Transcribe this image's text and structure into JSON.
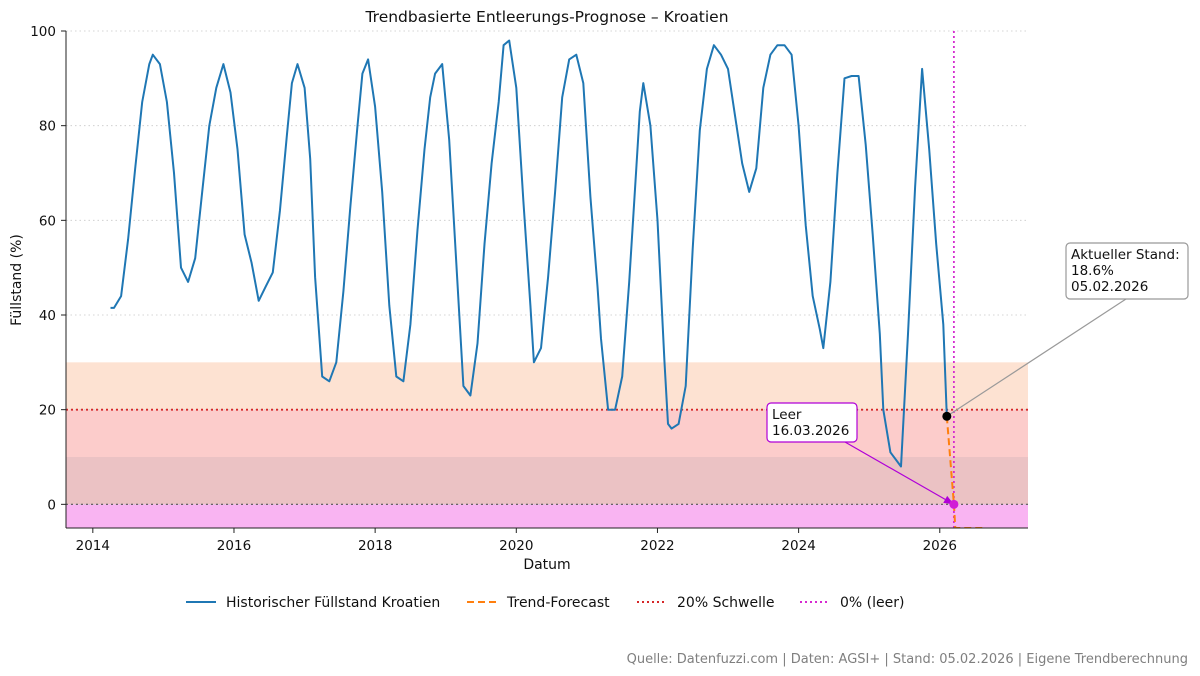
{
  "chart_data": {
    "type": "line",
    "title": "Trendbasierte Entleerungs-Prognose – Kroatien",
    "xlabel": "Datum",
    "ylabel": "Füllstand (%)",
    "xlim": [
      2013.62,
      2027.25
    ],
    "ylim": [
      -5,
      100
    ],
    "x_ticks": [
      2014,
      2016,
      2018,
      2020,
      2022,
      2024,
      2026
    ],
    "y_ticks": [
      0,
      20,
      40,
      60,
      80,
      100
    ],
    "grid": "horizontal dotted",
    "bands": [
      {
        "from": 20,
        "to": 30,
        "color": "#fde2d2"
      },
      {
        "from": 10,
        "to": 20,
        "color": "#fccccb"
      },
      {
        "from": 0,
        "to": 10,
        "color": "#ebc2c4"
      },
      {
        "from": -5,
        "to": 0,
        "color": "#f9b4f2"
      }
    ],
    "series": [
      {
        "name": "Historischer Füllstand Kroatien",
        "color": "#1f77b4",
        "style": "solid",
        "x": [
          2014.25,
          2014.3,
          2014.4,
          2014.5,
          2014.6,
          2014.7,
          2014.8,
          2014.85,
          2014.95,
          2015.05,
          2015.15,
          2015.25,
          2015.35,
          2015.45,
          2015.55,
          2015.65,
          2015.75,
          2015.85,
          2015.95,
          2016.05,
          2016.15,
          2016.25,
          2016.35,
          2016.45,
          2016.55,
          2016.65,
          2016.75,
          2016.82,
          2016.9,
          2017.0,
          2017.08,
          2017.15,
          2017.25,
          2017.35,
          2017.45,
          2017.55,
          2017.65,
          2017.75,
          2017.82,
          2017.9,
          2018.0,
          2018.1,
          2018.2,
          2018.3,
          2018.4,
          2018.5,
          2018.6,
          2018.7,
          2018.78,
          2018.85,
          2018.95,
          2019.05,
          2019.15,
          2019.25,
          2019.35,
          2019.45,
          2019.55,
          2019.65,
          2019.75,
          2019.82,
          2019.9,
          2020.0,
          2020.1,
          2020.2,
          2020.25,
          2020.35,
          2020.45,
          2020.55,
          2020.65,
          2020.75,
          2020.85,
          2020.95,
          2021.05,
          2021.15,
          2021.2,
          2021.3,
          2021.4,
          2021.5,
          2021.6,
          2021.7,
          2021.75,
          2021.8,
          2021.9,
          2022.0,
          2022.1,
          2022.15,
          2022.2,
          2022.3,
          2022.4,
          2022.5,
          2022.6,
          2022.7,
          2022.8,
          2022.9,
          2023.0,
          2023.1,
          2023.2,
          2023.3,
          2023.4,
          2023.5,
          2023.6,
          2023.7,
          2023.8,
          2023.9,
          2024.0,
          2024.1,
          2024.2,
          2024.3,
          2024.35,
          2024.45,
          2024.55,
          2024.65,
          2024.75,
          2024.85,
          2024.95,
          2025.05,
          2025.15,
          2025.2,
          2025.3,
          2025.45,
          2025.55,
          2025.65,
          2025.75,
          2025.85,
          2025.95,
          2026.05,
          2026.1
        ],
        "y": [
          41.5,
          41.5,
          44,
          56,
          71,
          85,
          93,
          95,
          93,
          85,
          70,
          50,
          47,
          52,
          66,
          80,
          88,
          93,
          87,
          75,
          57,
          51,
          43,
          46,
          49,
          62,
          78,
          89,
          93,
          88,
          73,
          48,
          27,
          26,
          30,
          45,
          63,
          80,
          91,
          94,
          84,
          66,
          42,
          27,
          26,
          38,
          58,
          75,
          86,
          91,
          93,
          77,
          51,
          25,
          23,
          34,
          55,
          72,
          85,
          97,
          98,
          88,
          64,
          42,
          30,
          33,
          48,
          66,
          86,
          94,
          95,
          89,
          65,
          46,
          35,
          20,
          20,
          27,
          47,
          71,
          83,
          89,
          80,
          60,
          30,
          17,
          16,
          17,
          25,
          54,
          79,
          92,
          97,
          95,
          92,
          82,
          72,
          66,
          71,
          88,
          95,
          97,
          97,
          95,
          80,
          59,
          44,
          37,
          33,
          47,
          70,
          90,
          90.5,
          90.5,
          76,
          57,
          36,
          20,
          11,
          8,
          36,
          67,
          92,
          75,
          55,
          38,
          18.6
        ]
      },
      {
        "name": "Trend-Forecast",
        "color": "#ff7f0e",
        "style": "dashed",
        "x": [
          2026.1,
          2026.2,
          2026.22,
          2026.32,
          2026.42,
          2026.62
        ],
        "y": [
          18.6,
          0,
          -5,
          -5,
          -5,
          -5
        ]
      }
    ],
    "reference_lines": [
      {
        "name": "20% Schwelle",
        "orientation": "horizontal",
        "value": 20,
        "color": "#d62728",
        "style": "dotted"
      },
      {
        "name": "0% (leer)",
        "orientation": "vertical",
        "value": 2026.2,
        "color": "#d62ad0",
        "style": "dotted"
      }
    ],
    "extra_lines": [
      {
        "orientation": "horizontal",
        "value": 0,
        "color": "#555555",
        "style": "dotted"
      }
    ],
    "markers": [
      {
        "name": "current",
        "x": 2026.1,
        "y": 18.6,
        "color": "#000000"
      },
      {
        "name": "empty",
        "x": 2026.2,
        "y": 0,
        "color": "#d11dd6"
      }
    ],
    "annotations": [
      {
        "lines": [
          "Aktueller Stand:",
          "18.6%",
          "05.02.2026"
        ],
        "target": "current",
        "border_color": "#999999"
      },
      {
        "lines": [
          "Leer",
          "16.03.2026"
        ],
        "target": "empty",
        "border_color": "#b000d8"
      }
    ],
    "legend": {
      "placement": "bottom-center",
      "ncol": 4
    }
  },
  "footer": {
    "source": "Quelle: Datenfuzzi.com | Daten: AGSI+ | Stand: 05.02.2026 | Eigene Trendberechnung"
  }
}
